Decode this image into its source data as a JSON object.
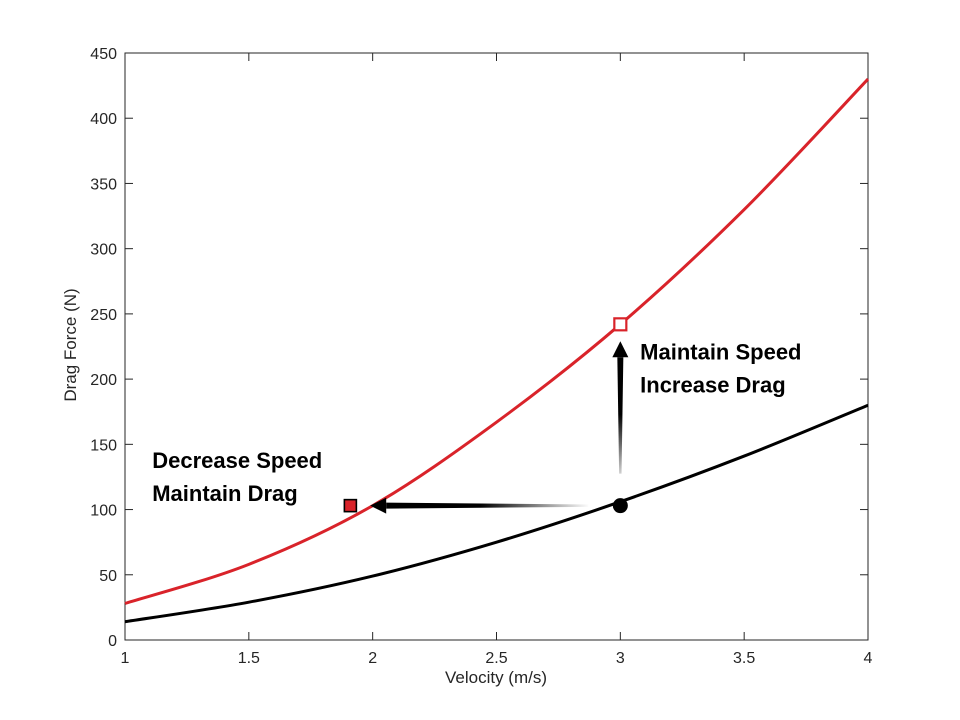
{
  "chart_data": {
    "type": "line",
    "xlabel": "Velocity (m/s)",
    "ylabel": "Drag Force (N)",
    "xlim": [
      1,
      4
    ],
    "ylim": [
      0,
      450
    ],
    "xticks": [
      1,
      1.5,
      2,
      2.5,
      3,
      3.5,
      4
    ],
    "yticks": [
      0,
      50,
      100,
      150,
      200,
      250,
      300,
      350,
      400,
      450
    ],
    "grid": false,
    "series": [
      {
        "color": "#d9232a",
        "x": [
          1,
          1.5,
          2,
          2.5,
          3,
          3.5,
          4
        ],
        "y": [
          28,
          58,
          103,
          167,
          242,
          330,
          430
        ]
      },
      {
        "color": "#000000",
        "x": [
          1,
          1.5,
          2,
          2.5,
          3,
          3.5,
          4
        ],
        "y": [
          14,
          29,
          49,
          75,
          106,
          141,
          180
        ]
      }
    ],
    "markers": [
      {
        "shape": "square-open",
        "color": "#d9232a",
        "x": 3.0,
        "y": 242
      },
      {
        "shape": "square-filled",
        "color": "#d9232a",
        "x": 1.91,
        "y": 103
      },
      {
        "shape": "circle-filled",
        "color": "#000000",
        "x": 3.0,
        "y": 103
      }
    ],
    "arrows": [
      {
        "from": [
          3.0,
          103
        ],
        "to": [
          1.99,
          103
        ],
        "color": "#000000"
      },
      {
        "from": [
          3.0,
          103
        ],
        "to": [
          3.0,
          229
        ],
        "color": "#000000"
      }
    ],
    "annotations": [
      {
        "lines": [
          "Maintain Speed",
          "Increase Drag"
        ],
        "x": 3.08,
        "y": 215
      },
      {
        "lines": [
          "Decrease Speed",
          "Maintain Drag"
        ],
        "x": 1.11,
        "y": 132
      }
    ]
  }
}
